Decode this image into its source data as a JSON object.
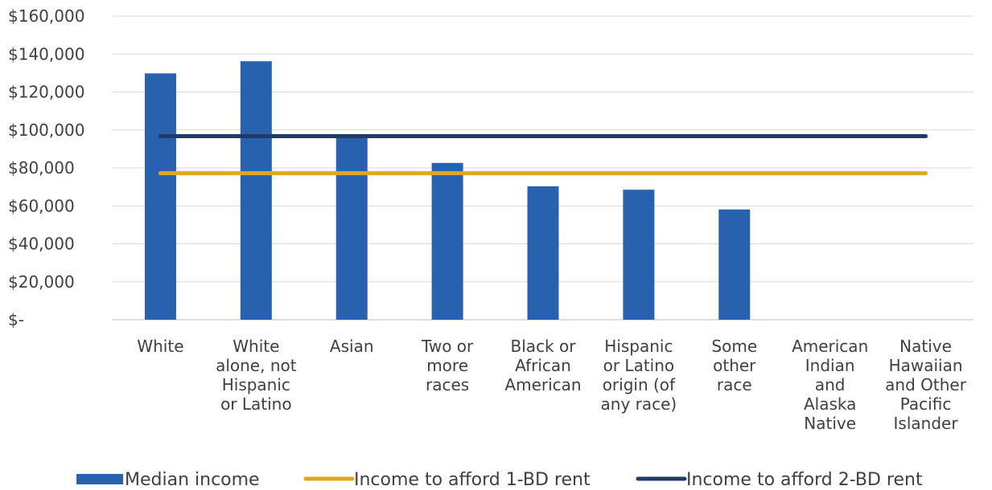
{
  "chart_data": {
    "type": "bar",
    "title": "",
    "xlabel": "",
    "ylabel": "",
    "ylim": [
      0,
      160000
    ],
    "yticks": [
      0,
      20000,
      40000,
      60000,
      80000,
      100000,
      120000,
      140000,
      160000
    ],
    "ytick_labels": [
      "$-",
      "$20,000",
      "$40,000",
      "$60,000",
      "$80,000",
      "$100,000",
      "$120,000",
      "$140,000",
      "$160,000"
    ],
    "grid": true,
    "legend_position": "bottom",
    "categories": [
      [
        "White"
      ],
      [
        "White",
        "alone, not",
        "Hispanic",
        "or Latino"
      ],
      [
        "Asian"
      ],
      [
        "Two or",
        "more",
        "races"
      ],
      [
        "Black or",
        "African",
        "American"
      ],
      [
        "Hispanic",
        "or Latino",
        "origin (of",
        "any race)"
      ],
      [
        "Some",
        "other",
        "race"
      ],
      [
        "American",
        "Indian",
        "and",
        "Alaska",
        "Native"
      ],
      [
        "Native",
        "Hawaiian",
        "and Other",
        "Pacific",
        "Islander"
      ]
    ],
    "series": [
      {
        "name": "Median income",
        "kind": "bar",
        "color": "#2862AE",
        "values": [
          129800,
          136200,
          97000,
          82600,
          70300,
          68500,
          58100,
          null,
          null
        ]
      },
      {
        "name": "Income to afford 1-BD rent",
        "kind": "line",
        "color": "#E0A722",
        "values": [
          77200,
          77200,
          77200,
          77200,
          77200,
          77200,
          77200,
          77200,
          77200
        ]
      },
      {
        "name": "Income to afford 2-BD rent",
        "kind": "line",
        "color": "#1F3B66",
        "values": [
          96700,
          96700,
          96700,
          96700,
          96700,
          96700,
          96700,
          96700,
          96700
        ]
      }
    ]
  }
}
